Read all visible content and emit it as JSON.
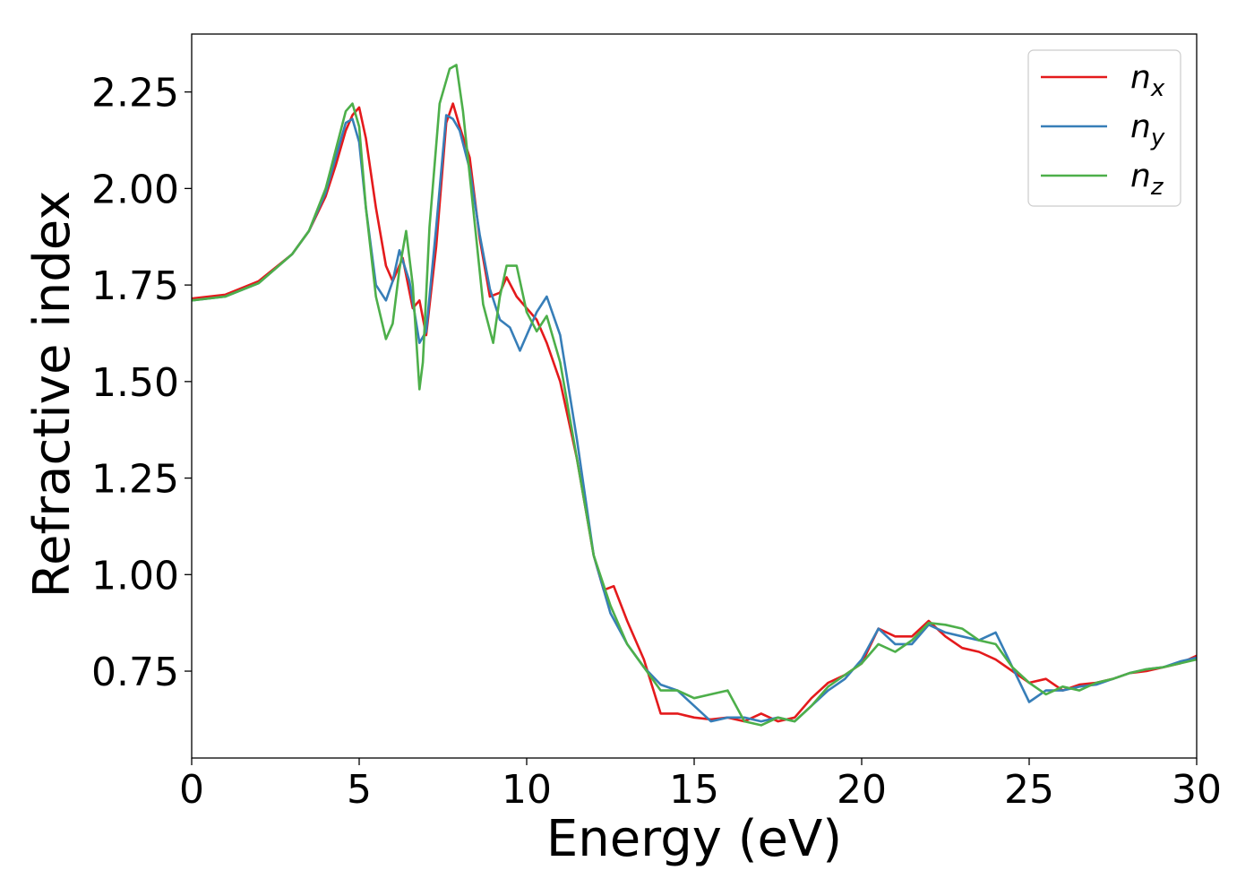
{
  "chart_data": {
    "type": "line",
    "title": "",
    "xlabel": "Energy (eV)",
    "ylabel": "Refractive index",
    "xlim": [
      0,
      30
    ],
    "ylim": [
      0.525,
      2.4
    ],
    "xticks": [
      0,
      5,
      10,
      15,
      20,
      25,
      30
    ],
    "xtick_labels": [
      "0",
      "5",
      "10",
      "15",
      "20",
      "25",
      "30"
    ],
    "yticks": [
      0.75,
      1.0,
      1.25,
      1.5,
      1.75,
      2.0,
      2.25
    ],
    "ytick_labels": [
      "0.75",
      "1.00",
      "1.25",
      "1.50",
      "1.75",
      "2.00",
      "2.25"
    ],
    "grid": false,
    "legend_position": "top-right",
    "legend": [
      {
        "base": "n",
        "sub": "x"
      },
      {
        "base": "n",
        "sub": "y"
      },
      {
        "base": "n",
        "sub": "z"
      }
    ],
    "series": [
      {
        "name": "n_x",
        "color": "#e41a1c",
        "x": [
          0,
          1,
          2,
          3,
          3.5,
          4,
          4.3,
          4.6,
          4.8,
          5.0,
          5.2,
          5.5,
          5.8,
          6.0,
          6.3,
          6.6,
          6.8,
          7.0,
          7.3,
          7.6,
          7.8,
          8.0,
          8.3,
          8.6,
          8.9,
          9.2,
          9.4,
          9.7,
          10.0,
          10.3,
          10.6,
          11.0,
          11.5,
          12.0,
          12.3,
          12.6,
          13.0,
          13.5,
          14.0,
          14.5,
          15.0,
          15.5,
          16.0,
          16.5,
          17.0,
          17.5,
          18.0,
          18.5,
          19.0,
          19.5,
          20.0,
          20.5,
          21.0,
          21.5,
          22.0,
          22.5,
          23.0,
          23.5,
          24.0,
          24.5,
          25.0,
          25.5,
          26.0,
          26.5,
          27.0,
          27.5,
          28.0,
          28.5,
          29.0,
          29.5,
          30.0
        ],
        "y": [
          1.715,
          1.725,
          1.76,
          1.83,
          1.89,
          1.98,
          2.06,
          2.15,
          2.19,
          2.21,
          2.13,
          1.95,
          1.8,
          1.76,
          1.82,
          1.69,
          1.71,
          1.62,
          1.85,
          2.17,
          2.22,
          2.16,
          2.08,
          1.87,
          1.72,
          1.73,
          1.77,
          1.72,
          1.69,
          1.66,
          1.6,
          1.5,
          1.3,
          1.05,
          0.96,
          0.97,
          0.88,
          0.78,
          0.64,
          0.64,
          0.63,
          0.625,
          0.63,
          0.62,
          0.64,
          0.62,
          0.63,
          0.68,
          0.72,
          0.74,
          0.77,
          0.86,
          0.84,
          0.84,
          0.88,
          0.84,
          0.81,
          0.8,
          0.78,
          0.75,
          0.72,
          0.73,
          0.7,
          0.715,
          0.72,
          0.73,
          0.745,
          0.75,
          0.76,
          0.77,
          0.79
        ]
      },
      {
        "name": "n_y",
        "color": "#377eb8",
        "x": [
          0,
          1,
          2,
          3,
          3.5,
          4,
          4.3,
          4.6,
          4.8,
          5.0,
          5.2,
          5.5,
          5.8,
          6.0,
          6.2,
          6.5,
          6.8,
          7.0,
          7.3,
          7.6,
          7.8,
          8.0,
          8.3,
          8.6,
          8.9,
          9.2,
          9.5,
          9.8,
          10.0,
          10.3,
          10.6,
          11.0,
          11.5,
          12.0,
          12.5,
          13.0,
          13.5,
          14.0,
          14.5,
          15.0,
          15.5,
          16.0,
          16.5,
          17.0,
          17.5,
          18.0,
          18.5,
          19.0,
          19.5,
          20.0,
          20.5,
          21.0,
          21.5,
          22.0,
          22.5,
          23.0,
          23.5,
          24.0,
          24.5,
          25.0,
          25.5,
          26.0,
          26.5,
          27.0,
          27.5,
          28.0,
          28.5,
          29.0,
          29.5,
          30.0
        ],
        "y": [
          1.71,
          1.72,
          1.755,
          1.83,
          1.89,
          1.99,
          2.08,
          2.17,
          2.18,
          2.12,
          1.95,
          1.75,
          1.71,
          1.76,
          1.84,
          1.76,
          1.6,
          1.63,
          1.9,
          2.19,
          2.18,
          2.15,
          2.05,
          1.88,
          1.74,
          1.66,
          1.64,
          1.58,
          1.62,
          1.68,
          1.72,
          1.62,
          1.35,
          1.05,
          0.9,
          0.82,
          0.76,
          0.715,
          0.7,
          0.66,
          0.62,
          0.63,
          0.63,
          0.62,
          0.63,
          0.62,
          0.66,
          0.7,
          0.73,
          0.78,
          0.86,
          0.82,
          0.82,
          0.87,
          0.85,
          0.84,
          0.83,
          0.85,
          0.76,
          0.67,
          0.7,
          0.7,
          0.71,
          0.715,
          0.73,
          0.745,
          0.755,
          0.76,
          0.775,
          0.785
        ]
      },
      {
        "name": "n_z",
        "color": "#4daf4a",
        "x": [
          0,
          1,
          2,
          3,
          3.5,
          4,
          4.3,
          4.6,
          4.8,
          5.0,
          5.2,
          5.5,
          5.8,
          6.0,
          6.2,
          6.4,
          6.6,
          6.8,
          6.9,
          7.1,
          7.4,
          7.7,
          7.9,
          8.1,
          8.4,
          8.7,
          9.0,
          9.2,
          9.4,
          9.7,
          10.0,
          10.3,
          10.6,
          11.0,
          11.5,
          12.0,
          12.5,
          13.0,
          13.5,
          14.0,
          14.5,
          15.0,
          15.5,
          16.0,
          16.5,
          17.0,
          17.5,
          18.0,
          18.5,
          19.0,
          19.5,
          20.0,
          20.5,
          21.0,
          21.5,
          22.0,
          22.5,
          23.0,
          23.5,
          24.0,
          24.5,
          25.0,
          25.5,
          26.0,
          26.5,
          27.0,
          27.5,
          28.0,
          28.5,
          29.0,
          29.5,
          30.0
        ],
        "y": [
          1.71,
          1.72,
          1.755,
          1.83,
          1.89,
          2.0,
          2.1,
          2.2,
          2.22,
          2.16,
          1.95,
          1.72,
          1.61,
          1.65,
          1.79,
          1.89,
          1.75,
          1.48,
          1.55,
          1.9,
          2.22,
          2.31,
          2.32,
          2.2,
          1.95,
          1.7,
          1.6,
          1.72,
          1.8,
          1.8,
          1.68,
          1.63,
          1.67,
          1.55,
          1.3,
          1.05,
          0.92,
          0.82,
          0.76,
          0.7,
          0.7,
          0.68,
          0.69,
          0.7,
          0.62,
          0.61,
          0.63,
          0.62,
          0.66,
          0.71,
          0.74,
          0.77,
          0.82,
          0.8,
          0.83,
          0.875,
          0.87,
          0.86,
          0.83,
          0.82,
          0.76,
          0.72,
          0.69,
          0.71,
          0.7,
          0.72,
          0.73,
          0.745,
          0.755,
          0.76,
          0.77,
          0.78
        ]
      }
    ]
  }
}
